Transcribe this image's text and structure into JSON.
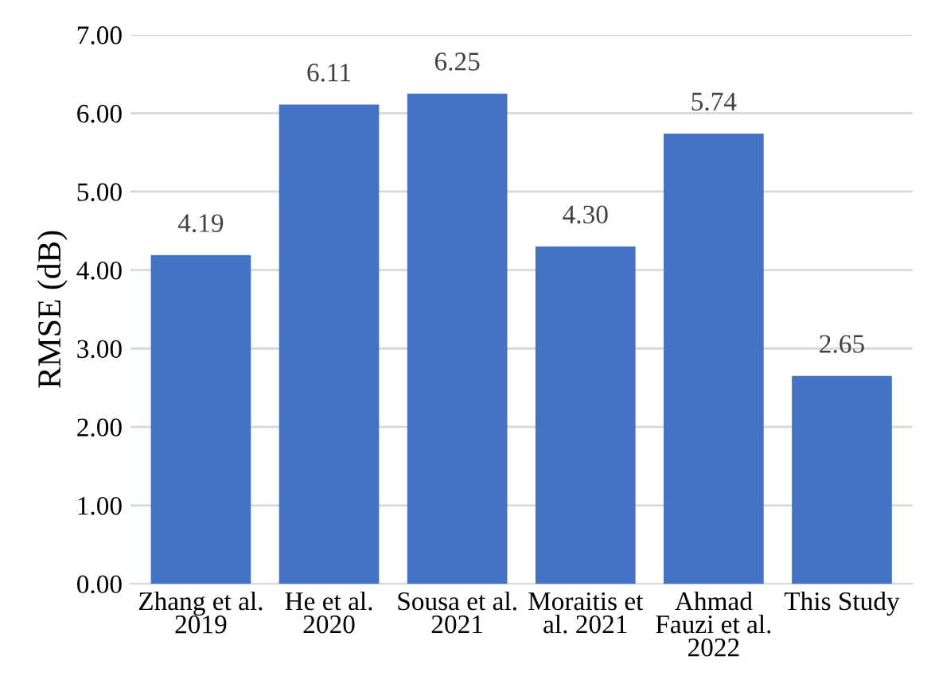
{
  "chart_data": {
    "type": "bar",
    "ylabel": "RMSE (dB)",
    "categories": [
      "Zhang et al.\n2019",
      "He et al.\n2020",
      "Sousa et al.\n2021",
      "Moraitis et\nal. 2021",
      "Ahmad\nFauzi et al.\n2022",
      "This Study"
    ],
    "values": [
      4.19,
      6.11,
      6.25,
      4.3,
      5.74,
      2.65
    ],
    "value_labels": [
      "4.19",
      "6.11",
      "6.25",
      "4.30",
      "5.74",
      "2.65"
    ],
    "color": "#4472c4",
    "ylim": [
      0,
      7
    ],
    "yticks": [
      {
        "value": 0,
        "label": "0.00"
      },
      {
        "value": 1,
        "label": "1.00"
      },
      {
        "value": 2,
        "label": "2.00"
      },
      {
        "value": 3,
        "label": "3.00"
      },
      {
        "value": 4,
        "label": "4.00"
      },
      {
        "value": 5,
        "label": "5.00"
      },
      {
        "value": 6,
        "label": "6.00"
      },
      {
        "value": 7,
        "label": "7.00"
      }
    ],
    "grid": "y"
  }
}
